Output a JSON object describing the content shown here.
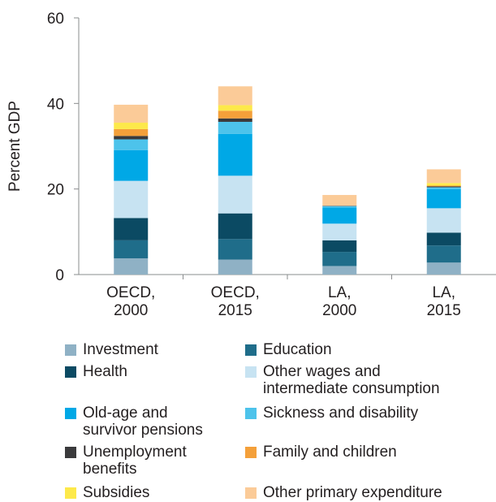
{
  "chart_data": {
    "type": "bar",
    "stacked": true,
    "ylabel": "Percent GDP",
    "xlabel": "",
    "ylim": [
      0,
      60
    ],
    "yticks": [
      0,
      20,
      40,
      60
    ],
    "grid": false,
    "legend_placement": "bottom",
    "categories": [
      "OECD,\n2000",
      "OECD,\n2015",
      "LA,\n2000",
      "LA,\n2015"
    ],
    "series": [
      {
        "name": "Investment",
        "color": "#8fb1c5",
        "values": [
          3.8,
          3.5,
          2.0,
          2.8
        ]
      },
      {
        "name": "Education",
        "color": "#1f6d8a",
        "values": [
          4.2,
          4.8,
          3.3,
          4.0
        ]
      },
      {
        "name": "Health",
        "color": "#0b4a63",
        "values": [
          5.2,
          6.0,
          2.7,
          3.0
        ]
      },
      {
        "name": "Other wages and\nintermediate consumption",
        "color": "#c7e3f2",
        "values": [
          8.7,
          8.8,
          3.9,
          5.7
        ]
      },
      {
        "name": "Old-age and\nsurvivor pensions",
        "color": "#00a8e6",
        "values": [
          7.2,
          9.8,
          3.8,
          4.5
        ]
      },
      {
        "name": "Sickness and disability",
        "color": "#4dc3eb",
        "values": [
          2.5,
          2.8,
          0.3,
          0.4
        ]
      },
      {
        "name": "Unemployment\nbenefits",
        "color": "#3a3a3c",
        "values": [
          0.8,
          0.8,
          0.1,
          0.2
        ]
      },
      {
        "name": "Family and children",
        "color": "#f4a03a",
        "values": [
          1.6,
          1.8,
          0.0,
          0.2
        ]
      },
      {
        "name": "Subsidies",
        "color": "#fde94a",
        "values": [
          1.5,
          1.3,
          0.0,
          0.6
        ]
      },
      {
        "name": "Other primary expenditure",
        "color": "#fbcb98",
        "values": [
          4.2,
          4.4,
          2.5,
          3.2
        ]
      }
    ]
  }
}
